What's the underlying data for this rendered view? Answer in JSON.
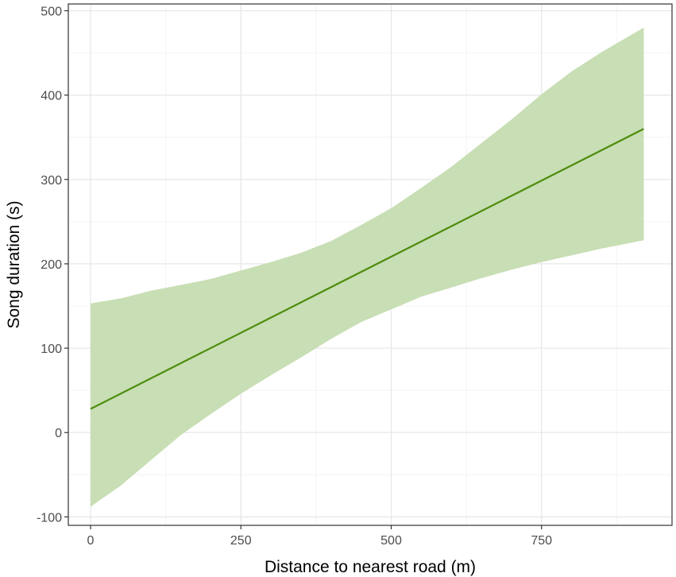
{
  "chart_data": {
    "type": "line",
    "title": "",
    "xlabel": "Distance to nearest road (m)",
    "ylabel": "Song duration (s)",
    "xlim": [
      -37,
      967
    ],
    "ylim": [
      -110,
      508
    ],
    "x_ticks": [
      0,
      250,
      500,
      750
    ],
    "x_tick_labels": [
      "0",
      "250",
      "500",
      "750"
    ],
    "y_ticks": [
      -100,
      0,
      100,
      200,
      300,
      400,
      500
    ],
    "y_tick_labels": [
      "-100",
      "0",
      "100",
      "200",
      "300",
      "400",
      "500"
    ],
    "grid": true,
    "legend": "none",
    "series": [
      {
        "x": [
          0,
          920
        ],
        "y": [
          28,
          360
        ],
        "ribbon_x": [
          0,
          50,
          100,
          150,
          200,
          250,
          300,
          350,
          400,
          450,
          500,
          550,
          600,
          650,
          700,
          750,
          800,
          850,
          920
        ],
        "ribbon_lower": [
          -88,
          -63,
          -33,
          -3,
          22,
          46,
          68,
          89,
          111,
          131,
          146,
          161,
          172,
          183,
          193,
          202,
          210,
          218,
          228
        ],
        "ribbon_upper": [
          153,
          159,
          168,
          175,
          182,
          192,
          202,
          213,
          227,
          246,
          266,
          290,
          315,
          343,
          371,
          401,
          428,
          451,
          480
        ]
      }
    ],
    "colors": {
      "line": "#4d8c0d",
      "ribbon": "#c8deb4",
      "grid_major": "#e9e9e9",
      "grid_minor": "#f4f4f4",
      "panel_border": "#333333",
      "tick_text": "#4d4d4d"
    }
  }
}
